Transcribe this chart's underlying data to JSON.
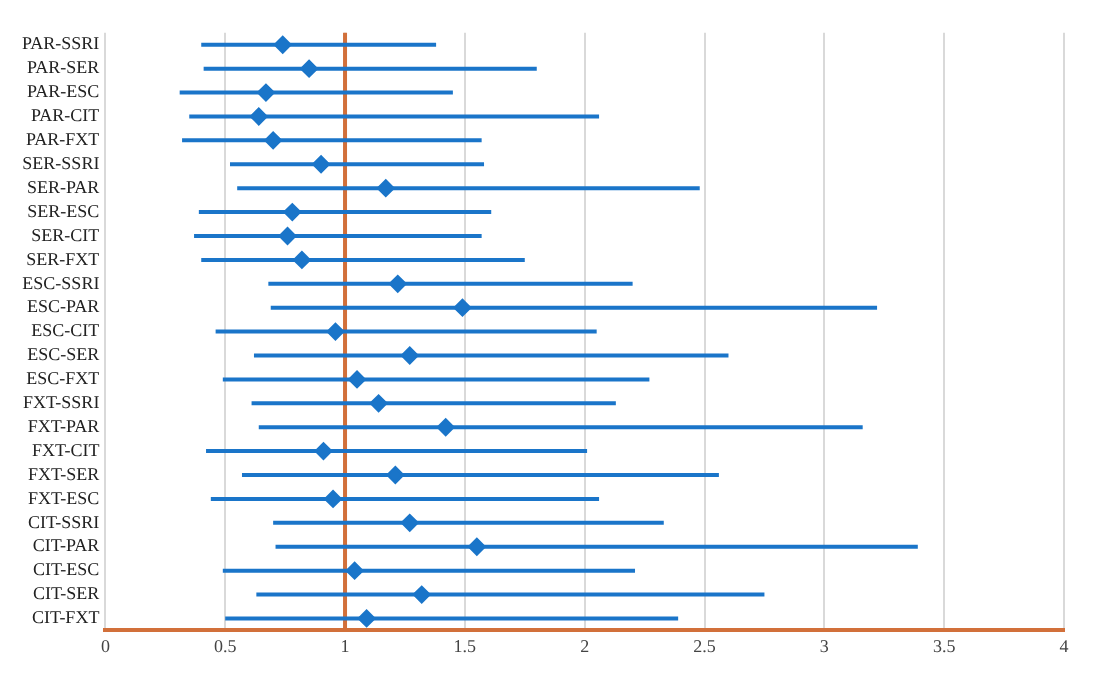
{
  "chart_data": {
    "type": "scatter",
    "orientation": "horizontal",
    "marker": "diamond",
    "color": "#1a75c9",
    "categories": [
      "PAR-SSRI",
      "PAR-SER",
      "PAR-ESC",
      "PAR-CIT",
      "PAR-FXT",
      "SER-SSRI",
      "SER-PAR",
      "SER-ESC",
      "SER-CIT",
      "SER-FXT",
      "ESC-SSRI",
      "ESC-PAR",
      "ESC-CIT",
      "ESC-SER",
      "ESC-FXT",
      "FXT-SSRI",
      "FXT-PAR",
      "FXT-CIT",
      "FXT-SER",
      "FXT-ESC",
      "CIT-SSRI",
      "CIT-PAR",
      "CIT-ESC",
      "CIT-SER",
      "CIT-FXT"
    ],
    "values": [
      0.74,
      0.85,
      0.67,
      0.64,
      0.7,
      0.9,
      1.17,
      0.78,
      0.76,
      0.82,
      1.22,
      1.49,
      0.96,
      1.27,
      1.05,
      1.14,
      1.42,
      0.91,
      1.21,
      0.95,
      1.27,
      1.55,
      1.04,
      1.32,
      1.09
    ],
    "errors": [
      [
        0.4,
        1.38
      ],
      [
        0.41,
        1.8
      ],
      [
        0.31,
        1.45
      ],
      [
        0.35,
        2.06
      ],
      [
        0.32,
        1.57
      ],
      [
        0.52,
        1.58
      ],
      [
        0.55,
        2.48
      ],
      [
        0.39,
        1.61
      ],
      [
        0.37,
        1.57
      ],
      [
        0.4,
        1.75
      ],
      [
        0.68,
        2.2
      ],
      [
        0.69,
        3.22
      ],
      [
        0.46,
        2.05
      ],
      [
        0.62,
        2.6
      ],
      [
        0.49,
        2.27
      ],
      [
        0.61,
        2.13
      ],
      [
        0.64,
        3.16
      ],
      [
        0.42,
        2.01
      ],
      [
        0.57,
        2.56
      ],
      [
        0.44,
        2.06
      ],
      [
        0.7,
        2.33
      ],
      [
        0.71,
        3.39
      ],
      [
        0.49,
        2.21
      ],
      [
        0.63,
        2.75
      ],
      [
        0.5,
        2.39
      ]
    ],
    "xlim": [
      0,
      4
    ],
    "xticks": [
      0,
      0.5,
      1,
      1.5,
      2,
      2.5,
      3,
      3.5,
      4
    ],
    "grid": "x",
    "ref_lines": [
      {
        "axis": "x",
        "value": 1,
        "color": "#d2703a"
      }
    ]
  }
}
